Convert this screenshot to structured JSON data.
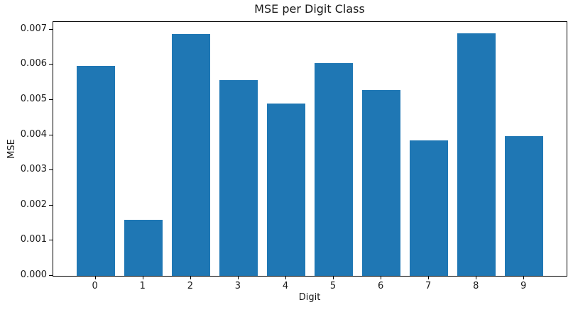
{
  "chart_data": {
    "type": "bar",
    "title": "MSE per Digit Class",
    "xlabel": "Digit",
    "ylabel": "MSE",
    "categories": [
      "0",
      "1",
      "2",
      "3",
      "4",
      "5",
      "6",
      "7",
      "8",
      "9"
    ],
    "values": [
      0.00596,
      0.00159,
      0.00688,
      0.00557,
      0.00491,
      0.00605,
      0.00529,
      0.00386,
      0.00689,
      0.00398
    ],
    "bar_color": "#1f77b4",
    "bar_width_ratio": 0.8,
    "xlim": [
      -0.89,
      9.89
    ],
    "ylim": [
      0,
      0.00722
    ],
    "yticks": [
      0.0,
      0.001,
      0.002,
      0.003,
      0.004,
      0.005,
      0.006,
      0.007
    ],
    "ytick_decimals": 3,
    "grid": false,
    "legend": "none",
    "background_color": "#ffffff",
    "text_color": "#1a1a1a"
  }
}
